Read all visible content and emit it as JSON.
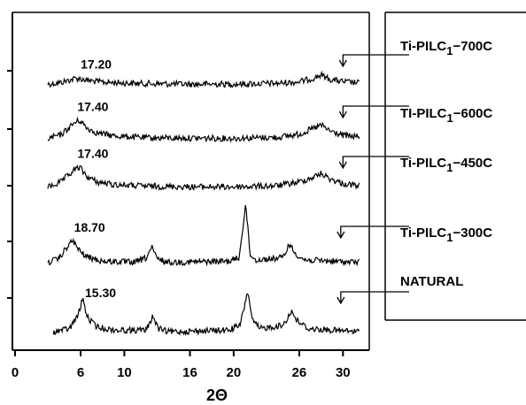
{
  "chart_data": {
    "type": "line",
    "xlabel": "2Θ",
    "xlim": [
      0,
      32
    ],
    "x_ticks": [
      0,
      6,
      10,
      16,
      20,
      26,
      30
    ],
    "series": [
      {
        "name": "Ti-PILC1−700C",
        "name_parts": [
          "Ti-PILC",
          "1",
          "−700C"
        ],
        "peak_label": "17.20",
        "peak_label_x": 6.0,
        "profile": [
          [
            3.0,
            0.05
          ],
          [
            4.2,
            0.15
          ],
          [
            5.6,
            0.42
          ],
          [
            6.4,
            0.32
          ],
          [
            7.5,
            0.2
          ],
          [
            9,
            0.14
          ],
          [
            12,
            0.08
          ],
          [
            16,
            0.04
          ],
          [
            20,
            0.05
          ],
          [
            24,
            0.1
          ],
          [
            26,
            0.2
          ],
          [
            27.2,
            0.4
          ],
          [
            28,
            0.62
          ],
          [
            28.8,
            0.35
          ],
          [
            30,
            0.2
          ],
          [
            31.5,
            0.12
          ]
        ],
        "arrow_x": 30.0
      },
      {
        "name": "TI-PILC1−600C",
        "name_parts": [
          "TI-PILC",
          "1",
          "−600C"
        ],
        "peak_label": "17.40",
        "peak_label_x": 5.7,
        "profile": [
          [
            3.0,
            0.05
          ],
          [
            4.2,
            0.25
          ],
          [
            5.4,
            0.85
          ],
          [
            5.9,
            1.0
          ],
          [
            6.6,
            0.6
          ],
          [
            7.5,
            0.35
          ],
          [
            9,
            0.2
          ],
          [
            12,
            0.1
          ],
          [
            16,
            0.08
          ],
          [
            20,
            0.07
          ],
          [
            24,
            0.12
          ],
          [
            26,
            0.28
          ],
          [
            27.4,
            0.6
          ],
          [
            28,
            0.75
          ],
          [
            28.8,
            0.45
          ],
          [
            30,
            0.22
          ],
          [
            31.5,
            0.15
          ]
        ],
        "arrow_x": 30.0
      },
      {
        "name": "Ti-PILC1−450C",
        "name_parts": [
          "Ti-PILC",
          "1",
          "−450C"
        ],
        "peak_label": "17.40",
        "peak_label_x": 5.7,
        "profile": [
          [
            3.0,
            0.05
          ],
          [
            4.2,
            0.3
          ],
          [
            5.4,
            0.85
          ],
          [
            5.9,
            1.0
          ],
          [
            6.6,
            0.55
          ],
          [
            7.5,
            0.3
          ],
          [
            9,
            0.18
          ],
          [
            12,
            0.1
          ],
          [
            16,
            0.07
          ],
          [
            20,
            0.07
          ],
          [
            24,
            0.12
          ],
          [
            26,
            0.3
          ],
          [
            27.4,
            0.55
          ],
          [
            28,
            0.7
          ],
          [
            28.8,
            0.45
          ],
          [
            30,
            0.22
          ],
          [
            31.5,
            0.12
          ]
        ],
        "arrow_x": 30.0
      },
      {
        "name": "Ti-PILC1−300C",
        "name_parts": [
          "Ti-PILC",
          "1",
          "−300C"
        ],
        "peak_label": "18.70",
        "peak_label_x": 5.4,
        "profile": [
          [
            3.0,
            0.05
          ],
          [
            4.0,
            0.2
          ],
          [
            4.8,
            0.75
          ],
          [
            5.3,
            1.0
          ],
          [
            5.8,
            0.6
          ],
          [
            6.5,
            0.3
          ],
          [
            8,
            0.1
          ],
          [
            11,
            0.05
          ],
          [
            12.0,
            0.25
          ],
          [
            12.5,
            0.7
          ],
          [
            13.0,
            0.2
          ],
          [
            14,
            0.05
          ],
          [
            19.5,
            0.1
          ],
          [
            20.5,
            0.25
          ],
          [
            21.1,
            2.6
          ],
          [
            21.5,
            0.4
          ],
          [
            22,
            0.15
          ],
          [
            24.5,
            0.25
          ],
          [
            25.1,
            0.85
          ],
          [
            25.6,
            0.45
          ],
          [
            26.5,
            0.15
          ],
          [
            29,
            0.1
          ],
          [
            31.5,
            0.05
          ]
        ],
        "arrow_x": 29.8
      },
      {
        "name": "NATURAL",
        "name_parts": [
          "NATURAL",
          "",
          ""
        ],
        "peak_label": "15.30",
        "peak_label_x": 6.4,
        "profile": [
          [
            3.5,
            0.05
          ],
          [
            5.0,
            0.15
          ],
          [
            5.8,
            0.6
          ],
          [
            6.2,
            1.1
          ],
          [
            6.6,
            0.5
          ],
          [
            7.5,
            0.2
          ],
          [
            9,
            0.1
          ],
          [
            12,
            0.1
          ],
          [
            12.6,
            0.55
          ],
          [
            13.1,
            0.15
          ],
          [
            14,
            0.05
          ],
          [
            19.5,
            0.1
          ],
          [
            20.6,
            0.25
          ],
          [
            21.3,
            1.35
          ],
          [
            21.7,
            0.4
          ],
          [
            22.4,
            0.15
          ],
          [
            24.5,
            0.25
          ],
          [
            25.3,
            0.7
          ],
          [
            25.8,
            0.4
          ],
          [
            26.8,
            0.15
          ],
          [
            29,
            0.1
          ],
          [
            31.5,
            0.05
          ]
        ],
        "arrow_x": 29.8
      }
    ]
  }
}
